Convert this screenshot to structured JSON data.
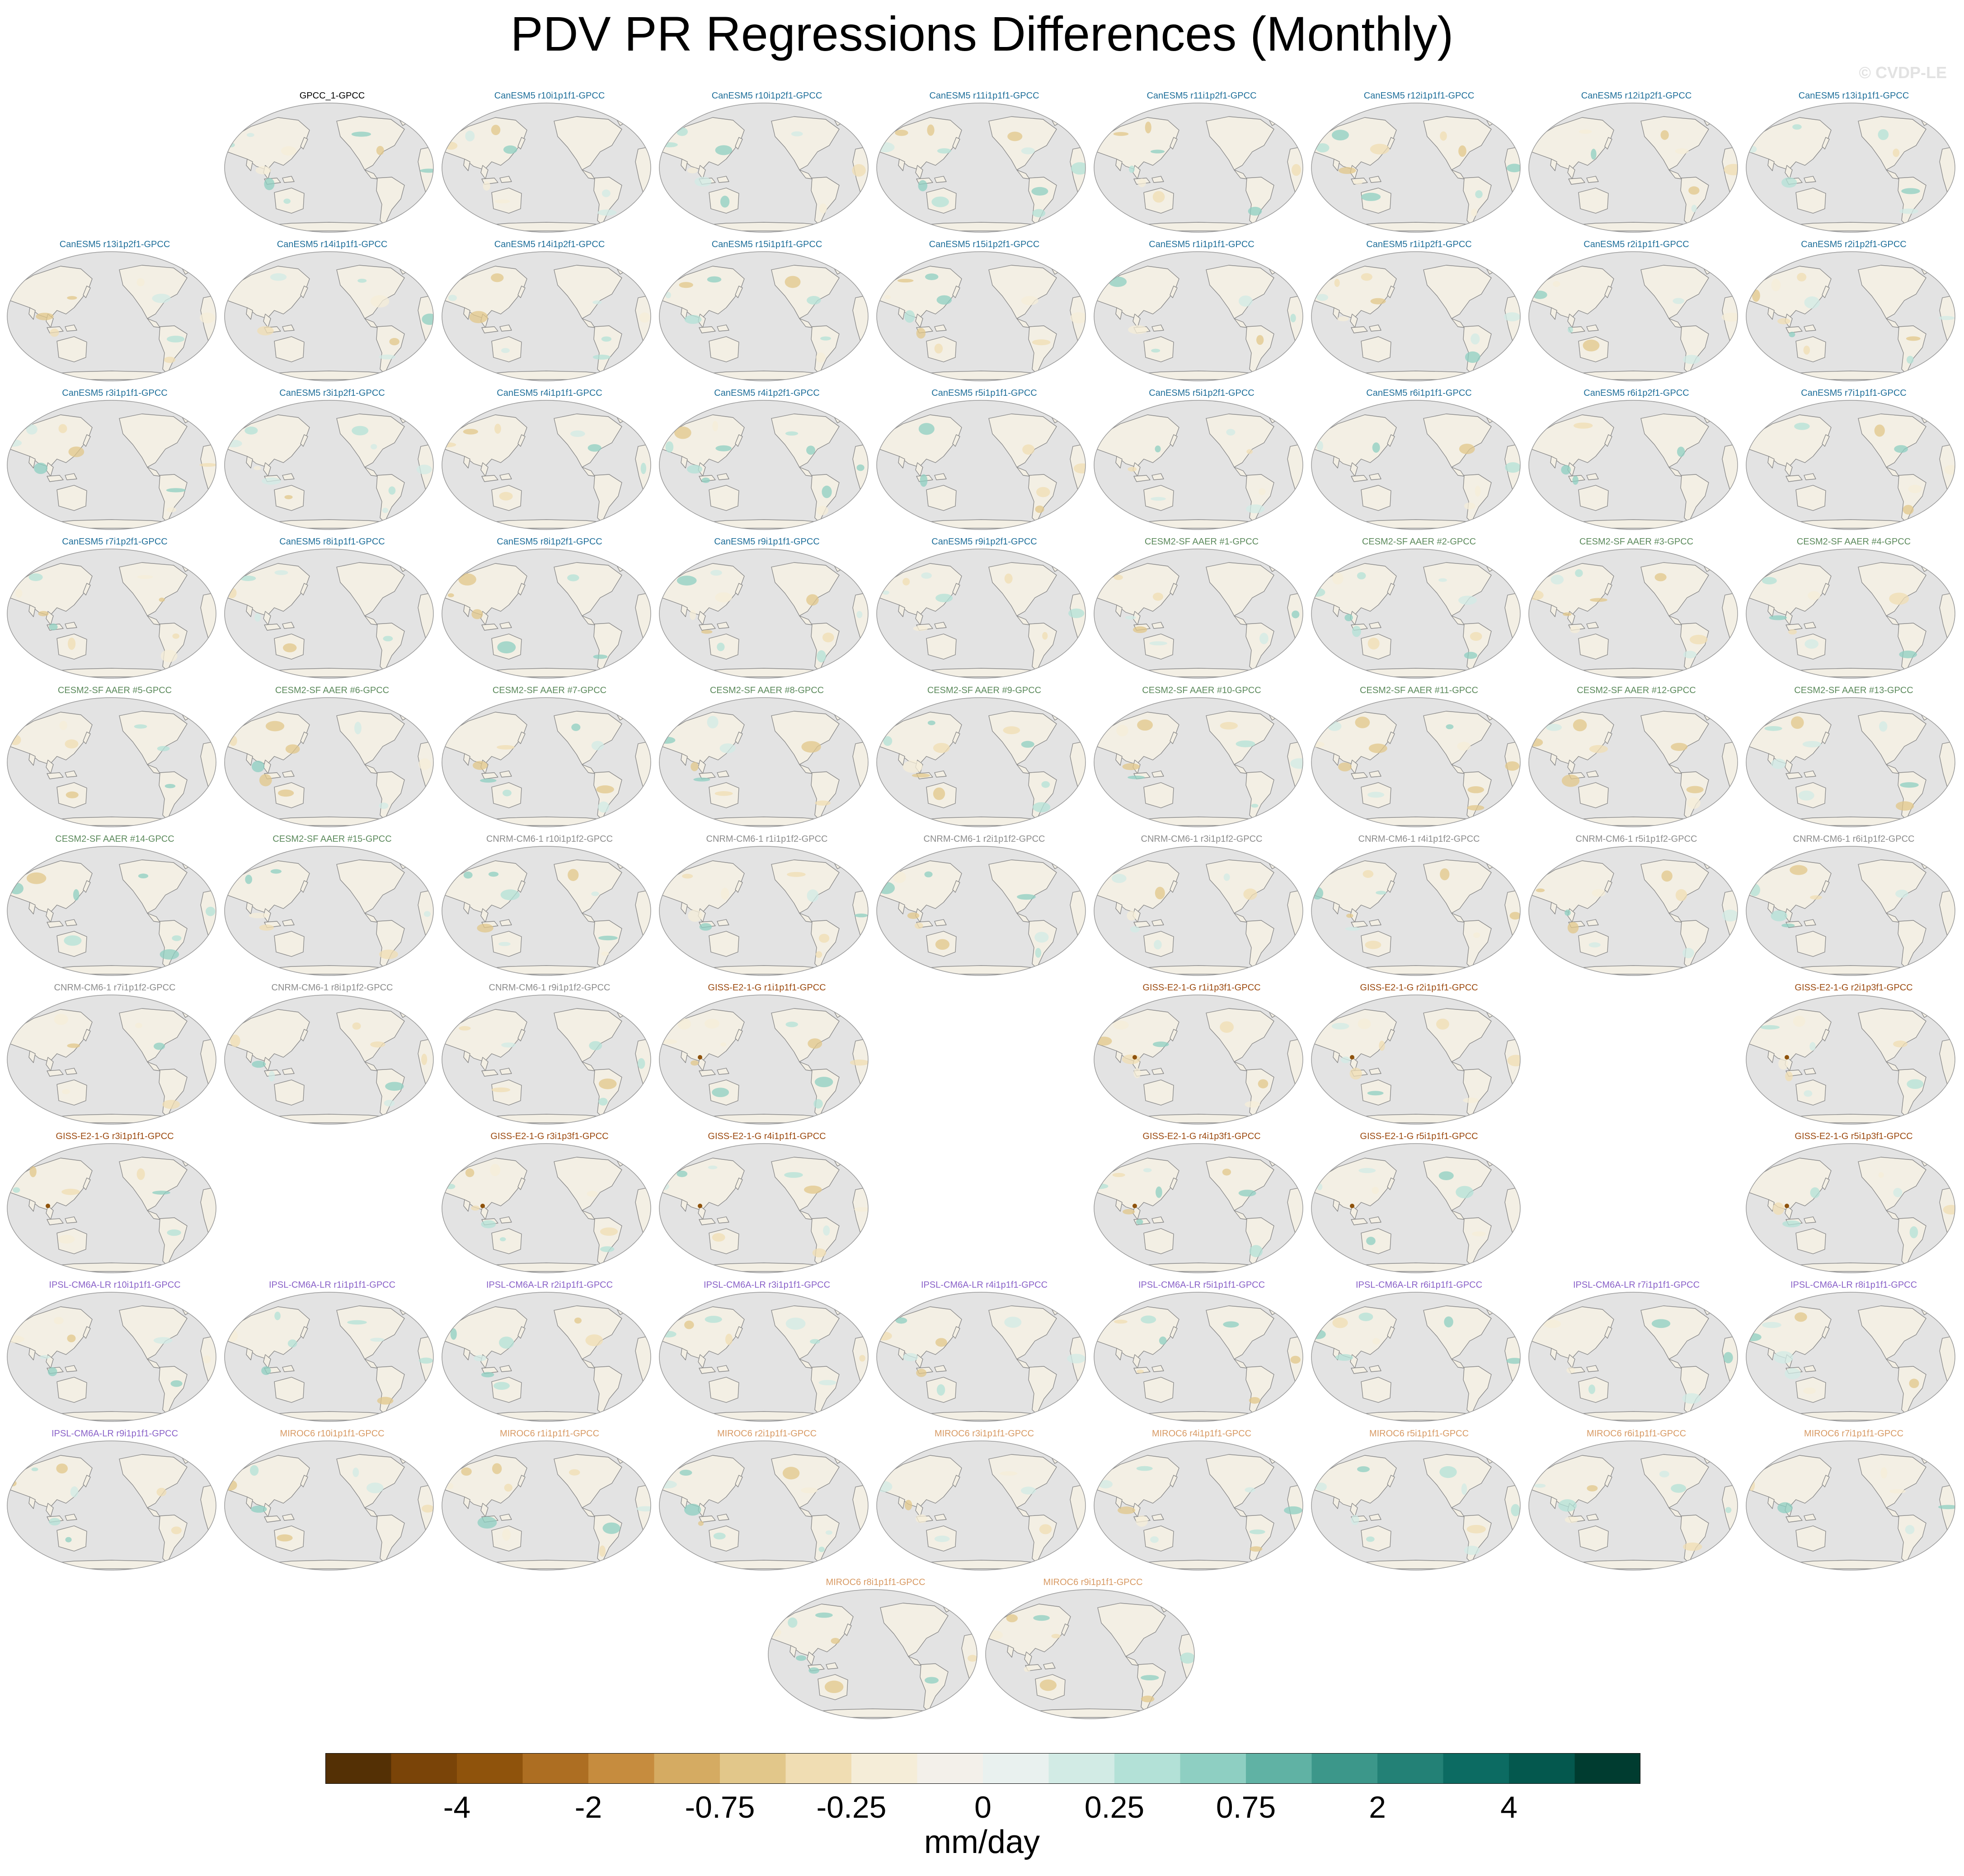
{
  "title": "PDV PR Regressions Differences (Monthly)",
  "watermark": "© CVDP-LE",
  "colors": {
    "ocean": "#e3e3e3",
    "coast": "#8a8a8a",
    "land_base": "#f3efe4",
    "groups": {
      "GPCC": "#000000",
      "CanESM5": "#1f6f9a",
      "CESM2-SF AAER": "#5c8a5c",
      "CNRM-CM6-1": "#8c8c8c",
      "GISS-E2-1-G": "#9c4a10",
      "IPSL-CM6A-LR": "#8a62c8",
      "MIROC6": "#d89a64"
    }
  },
  "chart_data": {
    "type": "map-panels",
    "title": "PDV PR Regressions Differences (Monthly)",
    "projection": "robinson-pacific-centered",
    "panels": [
      {
        "title": "GPCC_1-GPCC",
        "group": "GPCC",
        "row": 0,
        "col": 1
      },
      {
        "title": "CanESM5 r10i1p1f1-GPCC",
        "group": "CanESM5",
        "row": 0,
        "col": 2
      },
      {
        "title": "CanESM5 r10i1p2f1-GPCC",
        "group": "CanESM5",
        "row": 0,
        "col": 3
      },
      {
        "title": "CanESM5 r11i1p1f1-GPCC",
        "group": "CanESM5",
        "row": 0,
        "col": 4
      },
      {
        "title": "CanESM5 r11i1p2f1-GPCC",
        "group": "CanESM5",
        "row": 0,
        "col": 5
      },
      {
        "title": "CanESM5 r12i1p1f1-GPCC",
        "group": "CanESM5",
        "row": 0,
        "col": 6
      },
      {
        "title": "CanESM5 r12i1p2f1-GPCC",
        "group": "CanESM5",
        "row": 0,
        "col": 7
      },
      {
        "title": "CanESM5 r13i1p1f1-GPCC",
        "group": "CanESM5",
        "row": 0,
        "col": 8
      },
      {
        "title": "CanESM5 r13i1p2f1-GPCC",
        "group": "CanESM5",
        "row": 1,
        "col": 0
      },
      {
        "title": "CanESM5 r14i1p1f1-GPCC",
        "group": "CanESM5",
        "row": 1,
        "col": 1
      },
      {
        "title": "CanESM5 r14i1p2f1-GPCC",
        "group": "CanESM5",
        "row": 1,
        "col": 2
      },
      {
        "title": "CanESM5 r15i1p1f1-GPCC",
        "group": "CanESM5",
        "row": 1,
        "col": 3
      },
      {
        "title": "CanESM5 r15i1p2f1-GPCC",
        "group": "CanESM5",
        "row": 1,
        "col": 4
      },
      {
        "title": "CanESM5 r1i1p1f1-GPCC",
        "group": "CanESM5",
        "row": 1,
        "col": 5
      },
      {
        "title": "CanESM5 r1i1p2f1-GPCC",
        "group": "CanESM5",
        "row": 1,
        "col": 6
      },
      {
        "title": "CanESM5 r2i1p1f1-GPCC",
        "group": "CanESM5",
        "row": 1,
        "col": 7
      },
      {
        "title": "CanESM5 r2i1p2f1-GPCC",
        "group": "CanESM5",
        "row": 1,
        "col": 8
      },
      {
        "title": "CanESM5 r3i1p1f1-GPCC",
        "group": "CanESM5",
        "row": 2,
        "col": 0
      },
      {
        "title": "CanESM5 r3i1p2f1-GPCC",
        "group": "CanESM5",
        "row": 2,
        "col": 1
      },
      {
        "title": "CanESM5 r4i1p1f1-GPCC",
        "group": "CanESM5",
        "row": 2,
        "col": 2
      },
      {
        "title": "CanESM5 r4i1p2f1-GPCC",
        "group": "CanESM5",
        "row": 2,
        "col": 3
      },
      {
        "title": "CanESM5 r5i1p1f1-GPCC",
        "group": "CanESM5",
        "row": 2,
        "col": 4
      },
      {
        "title": "CanESM5 r5i1p2f1-GPCC",
        "group": "CanESM5",
        "row": 2,
        "col": 5
      },
      {
        "title": "CanESM5 r6i1p1f1-GPCC",
        "group": "CanESM5",
        "row": 2,
        "col": 6
      },
      {
        "title": "CanESM5 r6i1p2f1-GPCC",
        "group": "CanESM5",
        "row": 2,
        "col": 7
      },
      {
        "title": "CanESM5 r7i1p1f1-GPCC",
        "group": "CanESM5",
        "row": 2,
        "col": 8
      },
      {
        "title": "CanESM5 r7i1p2f1-GPCC",
        "group": "CanESM5",
        "row": 3,
        "col": 0
      },
      {
        "title": "CanESM5 r8i1p1f1-GPCC",
        "group": "CanESM5",
        "row": 3,
        "col": 1
      },
      {
        "title": "CanESM5 r8i1p2f1-GPCC",
        "group": "CanESM5",
        "row": 3,
        "col": 2
      },
      {
        "title": "CanESM5 r9i1p1f1-GPCC",
        "group": "CanESM5",
        "row": 3,
        "col": 3
      },
      {
        "title": "CanESM5 r9i1p2f1-GPCC",
        "group": "CanESM5",
        "row": 3,
        "col": 4
      },
      {
        "title": "CESM2-SF AAER #1-GPCC",
        "group": "CESM2-SF AAER",
        "row": 3,
        "col": 5
      },
      {
        "title": "CESM2-SF AAER #2-GPCC",
        "group": "CESM2-SF AAER",
        "row": 3,
        "col": 6
      },
      {
        "title": "CESM2-SF AAER #3-GPCC",
        "group": "CESM2-SF AAER",
        "row": 3,
        "col": 7
      },
      {
        "title": "CESM2-SF AAER #4-GPCC",
        "group": "CESM2-SF AAER",
        "row": 3,
        "col": 8
      },
      {
        "title": "CESM2-SF AAER #5-GPCC",
        "group": "CESM2-SF AAER",
        "row": 4,
        "col": 0
      },
      {
        "title": "CESM2-SF AAER #6-GPCC",
        "group": "CESM2-SF AAER",
        "row": 4,
        "col": 1
      },
      {
        "title": "CESM2-SF AAER #7-GPCC",
        "group": "CESM2-SF AAER",
        "row": 4,
        "col": 2
      },
      {
        "title": "CESM2-SF AAER #8-GPCC",
        "group": "CESM2-SF AAER",
        "row": 4,
        "col": 3
      },
      {
        "title": "CESM2-SF AAER #9-GPCC",
        "group": "CESM2-SF AAER",
        "row": 4,
        "col": 4
      },
      {
        "title": "CESM2-SF AAER #10-GPCC",
        "group": "CESM2-SF AAER",
        "row": 4,
        "col": 5
      },
      {
        "title": "CESM2-SF AAER #11-GPCC",
        "group": "CESM2-SF AAER",
        "row": 4,
        "col": 6
      },
      {
        "title": "CESM2-SF AAER #12-GPCC",
        "group": "CESM2-SF AAER",
        "row": 4,
        "col": 7
      },
      {
        "title": "CESM2-SF AAER #13-GPCC",
        "group": "CESM2-SF AAER",
        "row": 4,
        "col": 8
      },
      {
        "title": "CESM2-SF AAER #14-GPCC",
        "group": "CESM2-SF AAER",
        "row": 5,
        "col": 0
      },
      {
        "title": "CESM2-SF AAER #15-GPCC",
        "group": "CESM2-SF AAER",
        "row": 5,
        "col": 1
      },
      {
        "title": "CNRM-CM6-1 r10i1p1f2-GPCC",
        "group": "CNRM-CM6-1",
        "row": 5,
        "col": 2
      },
      {
        "title": "CNRM-CM6-1 r1i1p1f2-GPCC",
        "group": "CNRM-CM6-1",
        "row": 5,
        "col": 3
      },
      {
        "title": "CNRM-CM6-1 r2i1p1f2-GPCC",
        "group": "CNRM-CM6-1",
        "row": 5,
        "col": 4
      },
      {
        "title": "CNRM-CM6-1 r3i1p1f2-GPCC",
        "group": "CNRM-CM6-1",
        "row": 5,
        "col": 5
      },
      {
        "title": "CNRM-CM6-1 r4i1p1f2-GPCC",
        "group": "CNRM-CM6-1",
        "row": 5,
        "col": 6
      },
      {
        "title": "CNRM-CM6-1 r5i1p1f2-GPCC",
        "group": "CNRM-CM6-1",
        "row": 5,
        "col": 7
      },
      {
        "title": "CNRM-CM6-1 r6i1p1f2-GPCC",
        "group": "CNRM-CM6-1",
        "row": 5,
        "col": 8
      },
      {
        "title": "CNRM-CM6-1 r7i1p1f2-GPCC",
        "group": "CNRM-CM6-1",
        "row": 6,
        "col": 0
      },
      {
        "title": "CNRM-CM6-1 r8i1p1f2-GPCC",
        "group": "CNRM-CM6-1",
        "row": 6,
        "col": 1
      },
      {
        "title": "CNRM-CM6-1 r9i1p1f2-GPCC",
        "group": "CNRM-CM6-1",
        "row": 6,
        "col": 2
      },
      {
        "title": "GISS-E2-1-G r1i1p1f1-GPCC",
        "group": "GISS-E2-1-G",
        "row": 6,
        "col": 3
      },
      {
        "title": "GISS-E2-1-G r1i1p3f1-GPCC",
        "group": "GISS-E2-1-G",
        "row": 6,
        "col": 5
      },
      {
        "title": "GISS-E2-1-G r2i1p1f1-GPCC",
        "group": "GISS-E2-1-G",
        "row": 6,
        "col": 6
      },
      {
        "title": "GISS-E2-1-G r2i1p3f1-GPCC",
        "group": "GISS-E2-1-G",
        "row": 6,
        "col": 8
      },
      {
        "title": "GISS-E2-1-G r3i1p1f1-GPCC",
        "group": "GISS-E2-1-G",
        "row": 7,
        "col": 0
      },
      {
        "title": "GISS-E2-1-G r3i1p3f1-GPCC",
        "group": "GISS-E2-1-G",
        "row": 7,
        "col": 2
      },
      {
        "title": "GISS-E2-1-G r4i1p1f1-GPCC",
        "group": "GISS-E2-1-G",
        "row": 7,
        "col": 3
      },
      {
        "title": "GISS-E2-1-G r4i1p3f1-GPCC",
        "group": "GISS-E2-1-G",
        "row": 7,
        "col": 5
      },
      {
        "title": "GISS-E2-1-G r5i1p1f1-GPCC",
        "group": "GISS-E2-1-G",
        "row": 7,
        "col": 6
      },
      {
        "title": "GISS-E2-1-G r5i1p3f1-GPCC",
        "group": "GISS-E2-1-G",
        "row": 7,
        "col": 8
      },
      {
        "title": "IPSL-CM6A-LR r10i1p1f1-GPCC",
        "group": "IPSL-CM6A-LR",
        "row": 8,
        "col": 0
      },
      {
        "title": "IPSL-CM6A-LR r1i1p1f1-GPCC",
        "group": "IPSL-CM6A-LR",
        "row": 8,
        "col": 1
      },
      {
        "title": "IPSL-CM6A-LR r2i1p1f1-GPCC",
        "group": "IPSL-CM6A-LR",
        "row": 8,
        "col": 2
      },
      {
        "title": "IPSL-CM6A-LR r3i1p1f1-GPCC",
        "group": "IPSL-CM6A-LR",
        "row": 8,
        "col": 3
      },
      {
        "title": "IPSL-CM6A-LR r4i1p1f1-GPCC",
        "group": "IPSL-CM6A-LR",
        "row": 8,
        "col": 4
      },
      {
        "title": "IPSL-CM6A-LR r5i1p1f1-GPCC",
        "group": "IPSL-CM6A-LR",
        "row": 8,
        "col": 5
      },
      {
        "title": "IPSL-CM6A-LR r6i1p1f1-GPCC",
        "group": "IPSL-CM6A-LR",
        "row": 8,
        "col": 6
      },
      {
        "title": "IPSL-CM6A-LR r7i1p1f1-GPCC",
        "group": "IPSL-CM6A-LR",
        "row": 8,
        "col": 7
      },
      {
        "title": "IPSL-CM6A-LR r8i1p1f1-GPCC",
        "group": "IPSL-CM6A-LR",
        "row": 8,
        "col": 8
      },
      {
        "title": "IPSL-CM6A-LR r9i1p1f1-GPCC",
        "group": "IPSL-CM6A-LR",
        "row": 9,
        "col": 0
      },
      {
        "title": "MIROC6 r10i1p1f1-GPCC",
        "group": "MIROC6",
        "row": 9,
        "col": 1
      },
      {
        "title": "MIROC6 r1i1p1f1-GPCC",
        "group": "MIROC6",
        "row": 9,
        "col": 2
      },
      {
        "title": "MIROC6 r2i1p1f1-GPCC",
        "group": "MIROC6",
        "row": 9,
        "col": 3
      },
      {
        "title": "MIROC6 r3i1p1f1-GPCC",
        "group": "MIROC6",
        "row": 9,
        "col": 4
      },
      {
        "title": "MIROC6 r4i1p1f1-GPCC",
        "group": "MIROC6",
        "row": 9,
        "col": 5
      },
      {
        "title": "MIROC6 r5i1p1f1-GPCC",
        "group": "MIROC6",
        "row": 9,
        "col": 6
      },
      {
        "title": "MIROC6 r6i1p1f1-GPCC",
        "group": "MIROC6",
        "row": 9,
        "col": 7
      },
      {
        "title": "MIROC6 r7i1p1f1-GPCC",
        "group": "MIROC6",
        "row": 9,
        "col": 8
      },
      {
        "title": "MIROC6 r8i1p1f1-GPCC",
        "group": "MIROC6",
        "row": 10,
        "col": 3.5
      },
      {
        "title": "MIROC6 r9i1p1f1-GPCC",
        "group": "MIROC6",
        "row": 10,
        "col": 4.5
      }
    ],
    "colorbar": {
      "units": "mm/day",
      "colors": [
        "#543005",
        "#7a4408",
        "#8f530c",
        "#ad6e22",
        "#c68c3e",
        "#d5ab62",
        "#e2c78a",
        "#f0ddb3",
        "#f5edd8",
        "#f3f0ea",
        "#e9f1ef",
        "#d2ebe5",
        "#b3e1d7",
        "#8ecfc2",
        "#60b2a4",
        "#3c978a",
        "#238176",
        "#0c6b62",
        "#04584e",
        "#003c30"
      ],
      "ticks": [
        {
          "label": "-4",
          "boundary": 2
        },
        {
          "label": "-2",
          "boundary": 4
        },
        {
          "label": "-0.75",
          "boundary": 6
        },
        {
          "label": "-0.25",
          "boundary": 8
        },
        {
          "label": "0",
          "boundary": 10
        },
        {
          "label": "0.25",
          "boundary": 12
        },
        {
          "label": "0.75",
          "boundary": 14
        },
        {
          "label": "2",
          "boundary": 16
        },
        {
          "label": "4",
          "boundary": 18
        }
      ]
    }
  }
}
